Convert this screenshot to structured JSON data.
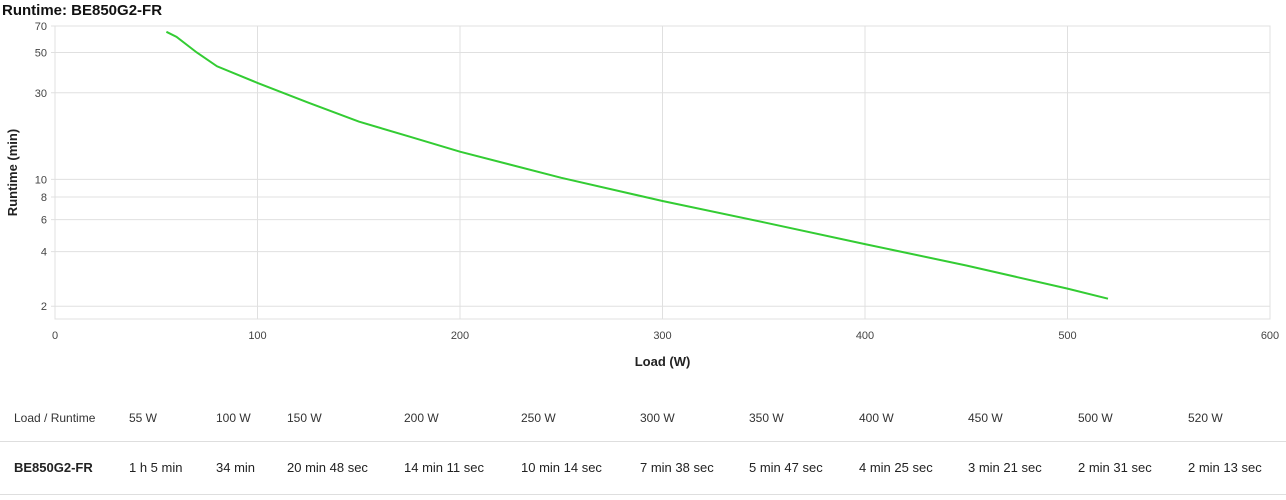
{
  "chart_data": {
    "type": "line",
    "title": "Runtime: BE850G2-FR",
    "xlabel": "Load (W)",
    "ylabel": "Runtime (min)",
    "xlim": [
      0,
      600
    ],
    "ylim": [
      1.7,
      70
    ],
    "y_scale": "log",
    "x_ticks": [
      0,
      100,
      200,
      300,
      400,
      500,
      600
    ],
    "y_ticks": [
      2,
      4,
      6,
      8,
      10,
      30,
      50,
      70
    ],
    "grid": true,
    "line_color": "#33cc33",
    "series": [
      {
        "x": [
          55,
          60,
          70,
          80,
          100,
          125,
          150,
          175,
          200,
          250,
          300,
          350,
          400,
          450,
          500,
          520
        ],
        "y": [
          65,
          61,
          50,
          42,
          34,
          26.5,
          20.8,
          17.2,
          14.2,
          10.2,
          7.6,
          5.8,
          4.4,
          3.35,
          2.5,
          2.2
        ]
      }
    ]
  },
  "table": {
    "header_label": "Load / Runtime",
    "loads": [
      "55 W",
      "100 W",
      "150 W",
      "200 W",
      "250 W",
      "300 W",
      "350 W",
      "400 W",
      "450 W",
      "500 W",
      "520 W"
    ],
    "rows": [
      {
        "model": "BE850G2-FR",
        "runtimes": [
          "1 h 5 min",
          "34 min",
          "20 min 48 sec",
          "14 min 11 sec",
          "10 min 14 sec",
          "7 min 38 sec",
          "5 min 47 sec",
          "4 min 25 sec",
          "3 min 21 sec",
          "2 min 31 sec",
          "2 min 13 sec"
        ]
      }
    ]
  }
}
